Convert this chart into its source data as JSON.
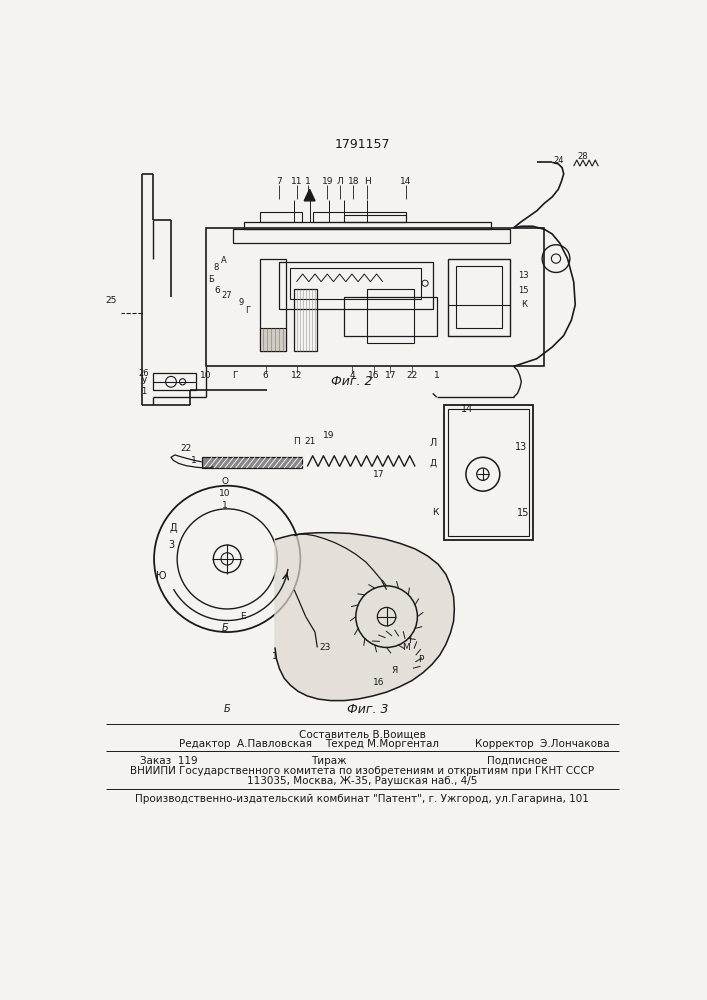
{
  "patent_number": "1791157",
  "fig2_label": "Фиг. 2",
  "fig3_label": "Фиг. 3",
  "footer_composer": "Составитель В.Воищев",
  "footer_editor": "Редактор  А.Павловская",
  "footer_techred": "Техред М.Моргентал",
  "footer_corrector": "Корректор  Э.Лончакова",
  "footer_order": "Заказ  119",
  "footer_tirazh": "Тираж",
  "footer_podp": "Подписное",
  "footer_vniip": "ВНИИПИ Государственного комитета по изобретениям и открытиям при ГКНТ СССР",
  "footer_addr": "113035, Москва, Ж-35, Раушская наб., 4/5",
  "footer_patent": "Производственно-издательский комбинат \"Патент\", г. Ужгород, ул.Гагарина, 101",
  "bg_color": "#f5f3ef",
  "line_color": "#1a1a1a"
}
